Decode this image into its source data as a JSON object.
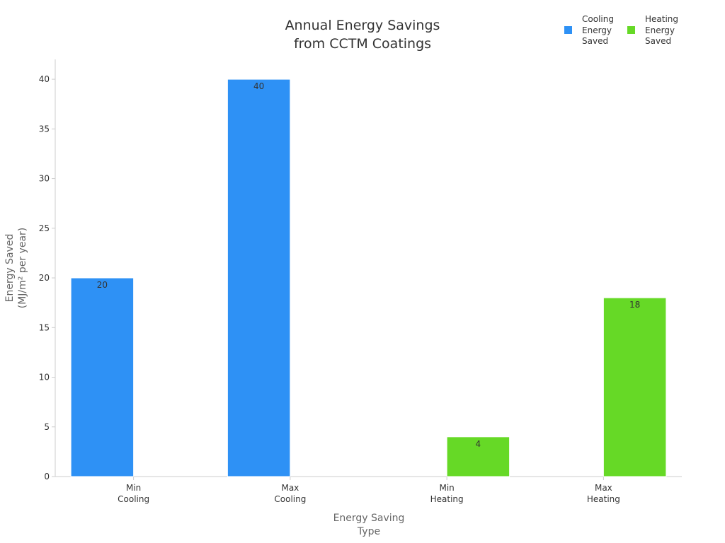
{
  "chart_data": {
    "type": "bar",
    "title_lines": [
      "Annual Energy Savings",
      "from CCTM Coatings"
    ],
    "categories": [
      {
        "lines": [
          "Min",
          "Cooling"
        ]
      },
      {
        "lines": [
          "Max",
          "Cooling"
        ]
      },
      {
        "lines": [
          "Min",
          "Heating"
        ]
      },
      {
        "lines": [
          "Max",
          "Heating"
        ]
      }
    ],
    "series": [
      {
        "name": "Cooling Energy Saved",
        "legend_lines": [
          "Cooling",
          "Energy",
          "Saved"
        ],
        "color": "#2e91f5",
        "values": [
          20,
          40,
          null,
          null
        ]
      },
      {
        "name": "Heating Energy Saved",
        "legend_lines": [
          "Heating",
          "Energy",
          "Saved"
        ],
        "color": "#66d926",
        "values": [
          null,
          null,
          4,
          18
        ]
      }
    ],
    "xlabel_lines": [
      "Energy Saving",
      "Type"
    ],
    "ylabel_lines": [
      "Energy Saved",
      "(MJ/m² per year)"
    ],
    "ylim": [
      0,
      42
    ],
    "yticks": [
      0,
      5,
      10,
      15,
      20,
      25,
      30,
      35,
      40
    ],
    "legend_position": "top-right",
    "grid": false
  }
}
